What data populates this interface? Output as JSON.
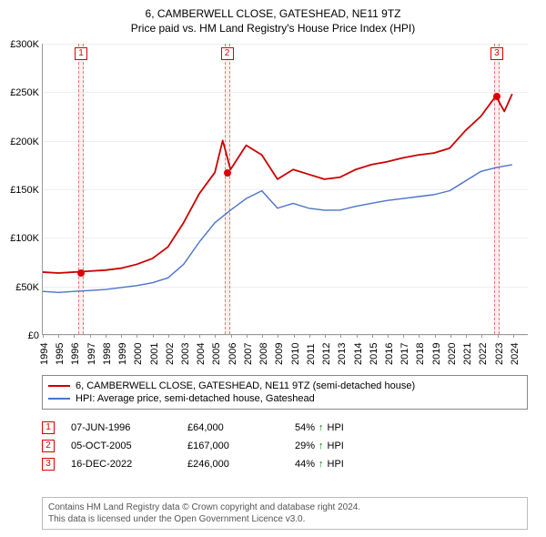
{
  "title": "6, CAMBERWELL CLOSE, GATESHEAD, NE11 9TZ",
  "subtitle": "Price paid vs. HM Land Registry's House Price Index (HPI)",
  "chart": {
    "type": "line",
    "background_color": "#ffffff",
    "grid_color": "#eeeeee",
    "axis_color": "#999999",
    "label_fontsize": 11,
    "xlim": [
      1994,
      2025
    ],
    "ylim": [
      0,
      300000
    ],
    "ytick_step": 50000,
    "yticks": [
      {
        "v": 0,
        "label": "£0"
      },
      {
        "v": 50000,
        "label": "£50K"
      },
      {
        "v": 100000,
        "label": "£100K"
      },
      {
        "v": 150000,
        "label": "£150K"
      },
      {
        "v": 200000,
        "label": "£200K"
      },
      {
        "v": 250000,
        "label": "£250K"
      },
      {
        "v": 300000,
        "label": "£300K"
      }
    ],
    "xticks": [
      1994,
      1995,
      1996,
      1997,
      1998,
      1999,
      2000,
      2001,
      2002,
      2003,
      2004,
      2005,
      2006,
      2007,
      2008,
      2009,
      2010,
      2011,
      2012,
      2013,
      2014,
      2015,
      2016,
      2017,
      2018,
      2019,
      2020,
      2021,
      2022,
      2023,
      2024
    ],
    "series": [
      {
        "name": "6, CAMBERWELL CLOSE, GATESHEAD, NE11 9TZ (semi-detached house)",
        "color": "#cc0000",
        "line_width": 1.8,
        "data": [
          [
            1994,
            64000
          ],
          [
            1995,
            63000
          ],
          [
            1996,
            64000
          ],
          [
            1997,
            65000
          ],
          [
            1998,
            66000
          ],
          [
            1999,
            68000
          ],
          [
            2000,
            72000
          ],
          [
            2001,
            78000
          ],
          [
            2002,
            90000
          ],
          [
            2003,
            115000
          ],
          [
            2004,
            145000
          ],
          [
            2005,
            167000
          ],
          [
            2005.5,
            200000
          ],
          [
            2006,
            170000
          ],
          [
            2007,
            195000
          ],
          [
            2008,
            185000
          ],
          [
            2009,
            160000
          ],
          [
            2010,
            170000
          ],
          [
            2011,
            165000
          ],
          [
            2012,
            160000
          ],
          [
            2013,
            162000
          ],
          [
            2014,
            170000
          ],
          [
            2015,
            175000
          ],
          [
            2016,
            178000
          ],
          [
            2017,
            182000
          ],
          [
            2018,
            185000
          ],
          [
            2019,
            187000
          ],
          [
            2020,
            192000
          ],
          [
            2021,
            210000
          ],
          [
            2022,
            225000
          ],
          [
            2022.96,
            246000
          ],
          [
            2023.5,
            230000
          ],
          [
            2024,
            248000
          ]
        ]
      },
      {
        "name": "HPI: Average price, semi-detached house, Gateshead",
        "color": "#4a74c9",
        "line_width": 1.4,
        "data": [
          [
            1994,
            44000
          ],
          [
            1995,
            43000
          ],
          [
            1996,
            44000
          ],
          [
            1997,
            45000
          ],
          [
            1998,
            46000
          ],
          [
            1999,
            48000
          ],
          [
            2000,
            50000
          ],
          [
            2001,
            53000
          ],
          [
            2002,
            58000
          ],
          [
            2003,
            72000
          ],
          [
            2004,
            95000
          ],
          [
            2005,
            115000
          ],
          [
            2006,
            128000
          ],
          [
            2007,
            140000
          ],
          [
            2008,
            148000
          ],
          [
            2009,
            130000
          ],
          [
            2010,
            135000
          ],
          [
            2011,
            130000
          ],
          [
            2012,
            128000
          ],
          [
            2013,
            128000
          ],
          [
            2014,
            132000
          ],
          [
            2015,
            135000
          ],
          [
            2016,
            138000
          ],
          [
            2017,
            140000
          ],
          [
            2018,
            142000
          ],
          [
            2019,
            144000
          ],
          [
            2020,
            148000
          ],
          [
            2021,
            158000
          ],
          [
            2022,
            168000
          ],
          [
            2023,
            172000
          ],
          [
            2024,
            175000
          ]
        ]
      }
    ],
    "markers": [
      {
        "n": "1",
        "x": 1996.44,
        "y": 64000,
        "band_color": "rgba(255,200,200,0.3)"
      },
      {
        "n": "2",
        "x": 2005.76,
        "y": 167000,
        "band_color": "rgba(255,200,200,0.3)"
      },
      {
        "n": "3",
        "x": 2022.96,
        "y": 246000,
        "band_color": "rgba(255,200,200,0.3)"
      }
    ]
  },
  "legend": {
    "items": [
      {
        "color": "#cc0000",
        "label": "6, CAMBERWELL CLOSE, GATESHEAD, NE11 9TZ (semi-detached house)"
      },
      {
        "color": "#4a74c9",
        "label": "HPI: Average price, semi-detached house, Gateshead"
      }
    ]
  },
  "transactions": [
    {
      "n": "1",
      "date": "07-JUN-1996",
      "price": "£64,000",
      "pct": "54%",
      "suffix": "HPI"
    },
    {
      "n": "2",
      "date": "05-OCT-2005",
      "price": "£167,000",
      "pct": "29%",
      "suffix": "HPI"
    },
    {
      "n": "3",
      "date": "16-DEC-2022",
      "price": "£246,000",
      "pct": "44%",
      "suffix": "HPI"
    }
  ],
  "footnote": {
    "line1": "Contains HM Land Registry data © Crown copyright and database right 2024.",
    "line2": "This data is licensed under the Open Government Licence v3.0."
  }
}
